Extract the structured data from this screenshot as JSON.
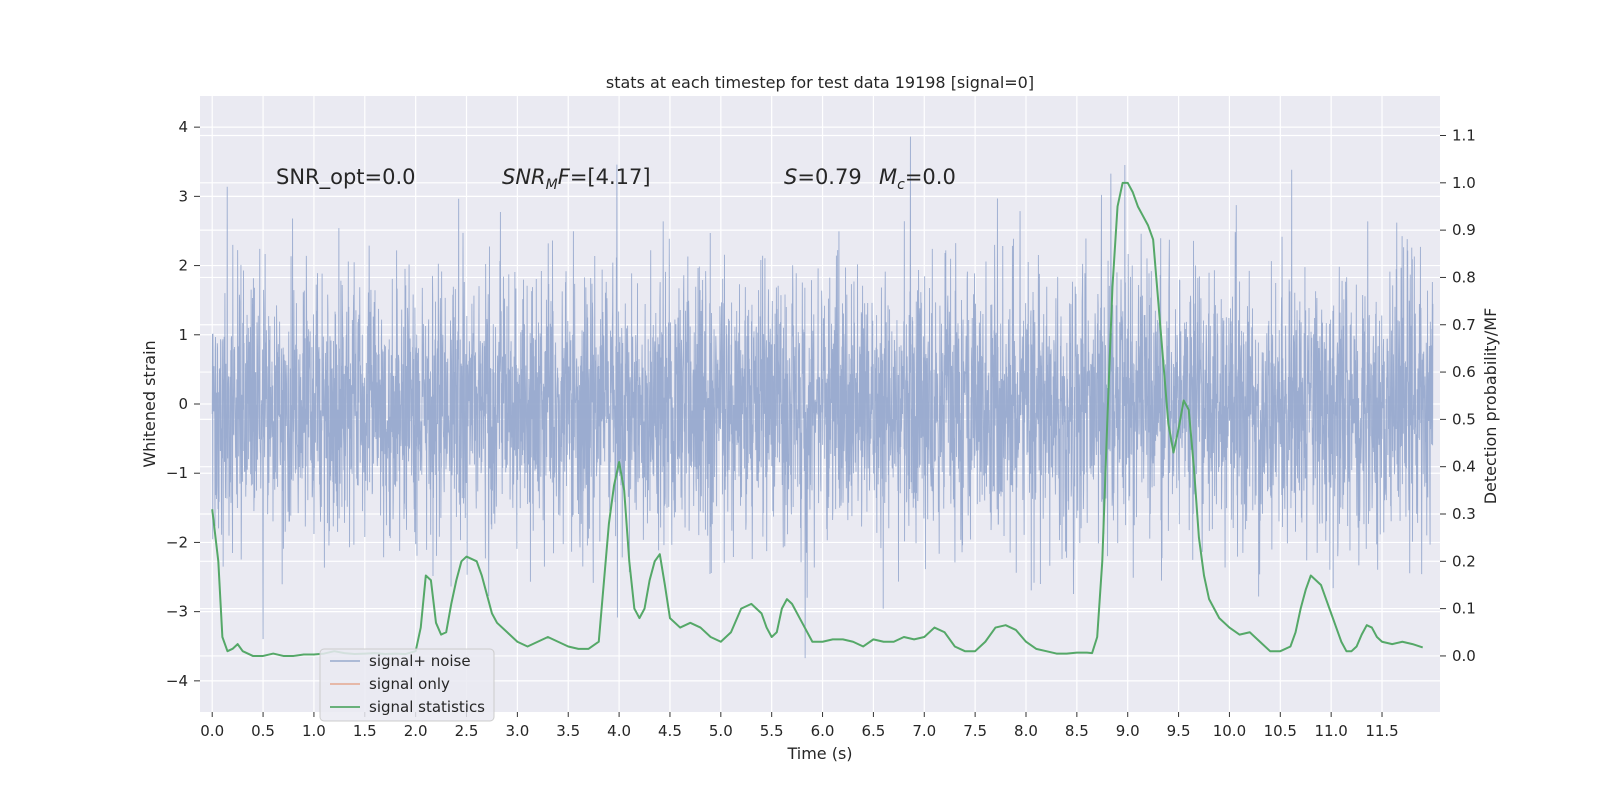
{
  "chart_data": {
    "type": "line",
    "title": "stats at each timestep for test data 19198 [signal=0]",
    "xlabel": "Time (s)",
    "ylabel": "Whitened strain",
    "y2label": "Detection probability/MF",
    "xlim": [
      -0.12,
      12.07
    ],
    "ylim": [
      -4.45,
      4.45
    ],
    "y2lim": [
      -0.1185,
      1.1835
    ],
    "xticks": [
      0.0,
      0.5,
      1.0,
      1.5,
      2.0,
      2.5,
      3.0,
      3.5,
      4.0,
      4.5,
      5.0,
      5.5,
      6.0,
      6.5,
      7.0,
      7.5,
      8.0,
      8.5,
      9.0,
      9.5,
      10.0,
      10.5,
      11.0,
      11.5
    ],
    "xtick_labels": [
      "0.0",
      "0.5",
      "1.0",
      "1.5",
      "2.0",
      "2.5",
      "3.0",
      "3.5",
      "4.0",
      "4.5",
      "5.0",
      "5.5",
      "6.0",
      "6.5",
      "7.0",
      "7.5",
      "8.0",
      "8.5",
      "9.0",
      "9.5",
      "10.0",
      "10.5",
      "11.0",
      "11.5"
    ],
    "yticks": [
      -4,
      -3,
      -2,
      -1,
      0,
      1,
      2,
      3,
      4
    ],
    "ytick_labels": [
      "−4",
      "−3",
      "−2",
      "−1",
      "0",
      "1",
      "2",
      "3",
      "4"
    ],
    "y2ticks": [
      0.0,
      0.1,
      0.2,
      0.3,
      0.4,
      0.5,
      0.6,
      0.7,
      0.8,
      0.9,
      1.0,
      1.1
    ],
    "y2tick_labels": [
      "0.0",
      "0.1",
      "0.2",
      "0.3",
      "0.4",
      "0.5",
      "0.6",
      "0.7",
      "0.8",
      "0.9",
      "1.0",
      "1.1"
    ],
    "grid": true,
    "legend_position": "lower-left",
    "annotations": {
      "snr_opt": "SNR_opt=0.0",
      "snr_mf_italic": "SNR",
      "snr_mf_sub": "M",
      "snr_mf_rest": "F=[4.17]",
      "s_label": "S",
      "s_value": "=0.79",
      "mc_label": "M",
      "mc_sub": "c",
      "mc_value": "=0.0"
    },
    "series": [
      {
        "name": "signal+ noise",
        "color": "#97a9cd",
        "axis": "left",
        "t_range": [
          0.0,
          12.0
        ],
        "typical_band": [
          -1.2,
          1.3
        ],
        "envelope_max": 4.1,
        "envelope_min": -4.05
      },
      {
        "name": "signal only",
        "color": "#e5a890",
        "axis": "left",
        "values": []
      },
      {
        "name": "signal statistics",
        "color": "#55a868",
        "axis": "right",
        "x": [
          0.0,
          0.06,
          0.1,
          0.15,
          0.2,
          0.25,
          0.3,
          0.4,
          0.5,
          0.6,
          0.7,
          0.8,
          0.9,
          1.0,
          1.1,
          1.2,
          1.3,
          1.4,
          1.5,
          1.6,
          1.7,
          1.8,
          1.9,
          2.0,
          2.05,
          2.1,
          2.15,
          2.2,
          2.25,
          2.3,
          2.35,
          2.4,
          2.45,
          2.5,
          2.55,
          2.6,
          2.65,
          2.7,
          2.75,
          2.8,
          2.9,
          3.0,
          3.1,
          3.2,
          3.3,
          3.4,
          3.5,
          3.6,
          3.7,
          3.8,
          3.9,
          3.95,
          4.0,
          4.05,
          4.1,
          4.15,
          4.2,
          4.25,
          4.3,
          4.35,
          4.4,
          4.45,
          4.5,
          4.6,
          4.7,
          4.8,
          4.9,
          5.0,
          5.1,
          5.2,
          5.3,
          5.4,
          5.45,
          5.5,
          5.55,
          5.6,
          5.65,
          5.7,
          5.8,
          5.9,
          6.0,
          6.1,
          6.2,
          6.3,
          6.4,
          6.5,
          6.6,
          6.7,
          6.8,
          6.9,
          7.0,
          7.1,
          7.2,
          7.3,
          7.4,
          7.5,
          7.6,
          7.7,
          7.8,
          7.9,
          8.0,
          8.1,
          8.2,
          8.3,
          8.4,
          8.5,
          8.6,
          8.65,
          8.7,
          8.75,
          8.8,
          8.85,
          8.9,
          8.95,
          9.0,
          9.05,
          9.1,
          9.15,
          9.2,
          9.25,
          9.3,
          9.35,
          9.4,
          9.45,
          9.5,
          9.55,
          9.6,
          9.65,
          9.7,
          9.75,
          9.8,
          9.9,
          10.0,
          10.1,
          10.2,
          10.3,
          10.4,
          10.5,
          10.6,
          10.65,
          10.7,
          10.75,
          10.8,
          10.85,
          10.9,
          10.95,
          11.0,
          11.05,
          11.1,
          11.15,
          11.2,
          11.25,
          11.3,
          11.35,
          11.4,
          11.45,
          11.5,
          11.6,
          11.7,
          11.8,
          11.9
        ],
        "values": [
          0.31,
          0.2,
          0.04,
          0.01,
          0.015,
          0.025,
          0.01,
          0.0,
          0.0,
          0.005,
          0.0,
          0.0,
          0.003,
          0.003,
          0.005,
          0.01,
          0.006,
          0.004,
          0.005,
          0.006,
          0.004,
          0.005,
          0.004,
          0.01,
          0.06,
          0.17,
          0.16,
          0.07,
          0.045,
          0.05,
          0.11,
          0.16,
          0.2,
          0.21,
          0.205,
          0.2,
          0.17,
          0.13,
          0.09,
          0.07,
          0.05,
          0.03,
          0.02,
          0.03,
          0.04,
          0.03,
          0.02,
          0.015,
          0.015,
          0.03,
          0.28,
          0.36,
          0.41,
          0.35,
          0.2,
          0.1,
          0.08,
          0.1,
          0.16,
          0.2,
          0.215,
          0.15,
          0.08,
          0.06,
          0.07,
          0.06,
          0.04,
          0.03,
          0.05,
          0.1,
          0.11,
          0.09,
          0.06,
          0.04,
          0.05,
          0.1,
          0.12,
          0.11,
          0.07,
          0.03,
          0.03,
          0.035,
          0.035,
          0.03,
          0.02,
          0.035,
          0.03,
          0.03,
          0.04,
          0.035,
          0.04,
          0.06,
          0.05,
          0.02,
          0.01,
          0.01,
          0.03,
          0.06,
          0.065,
          0.055,
          0.03,
          0.015,
          0.01,
          0.005,
          0.005,
          0.007,
          0.007,
          0.006,
          0.04,
          0.2,
          0.5,
          0.78,
          0.95,
          1.0,
          1.0,
          0.98,
          0.95,
          0.93,
          0.91,
          0.88,
          0.75,
          0.62,
          0.49,
          0.43,
          0.48,
          0.54,
          0.52,
          0.4,
          0.25,
          0.17,
          0.12,
          0.08,
          0.06,
          0.045,
          0.05,
          0.03,
          0.01,
          0.01,
          0.02,
          0.05,
          0.1,
          0.14,
          0.17,
          0.16,
          0.15,
          0.12,
          0.09,
          0.06,
          0.03,
          0.01,
          0.01,
          0.02,
          0.045,
          0.065,
          0.06,
          0.04,
          0.03,
          0.025,
          0.03,
          0.025,
          0.018
        ]
      }
    ]
  }
}
